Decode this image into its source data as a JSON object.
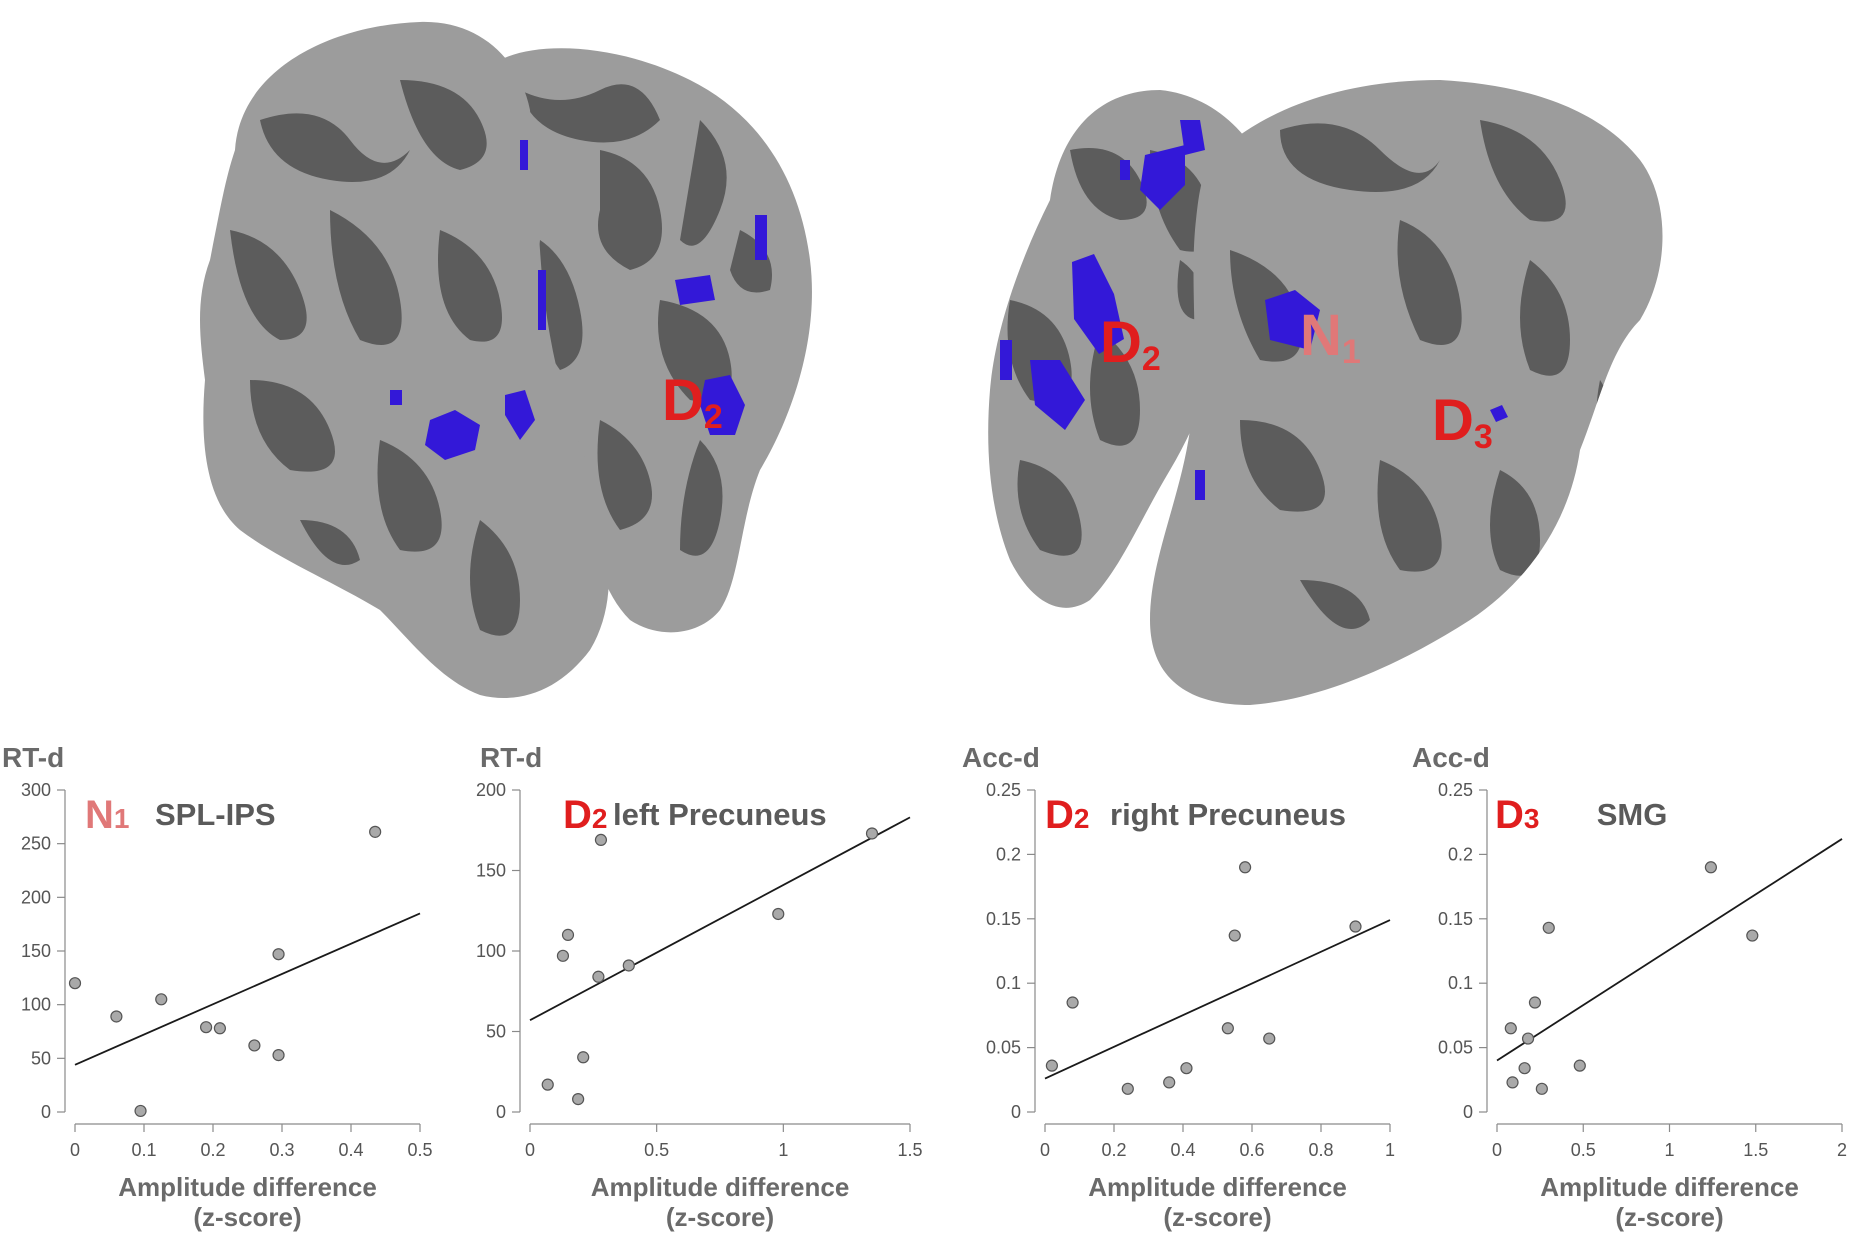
{
  "figure": {
    "brain_labels": {
      "left_hemisphere": [
        {
          "letter": "D",
          "sub": "2",
          "color": "#e01e1e"
        }
      ],
      "right_hemisphere": [
        {
          "letter": "D",
          "sub": "2",
          "color": "#e01e1e"
        },
        {
          "letter": "N",
          "sub": "1",
          "color": "#e07878"
        },
        {
          "letter": "D",
          "sub": "3",
          "color": "#e01e1e"
        }
      ]
    },
    "colors": {
      "cortex_light": "#9c9c9c",
      "cortex_dark": "#5c5c5c",
      "activation": "#3318d8",
      "regression_line": "#1a1a1a",
      "point_fill": "#a9a9a9"
    }
  },
  "chart_data": [
    {
      "type": "scatter",
      "ylabel": "RT-d",
      "label_letter": "N",
      "label_sub": "1",
      "label_color": "#e07878",
      "region": "SPL-IPS",
      "xlabel_line1": "Amplitude difference",
      "xlabel_line2": "(z-score)",
      "xlim": [
        0,
        0.5
      ],
      "ylim": [
        0,
        300
      ],
      "xticks": [
        0,
        0.1,
        0.2,
        0.3,
        0.4,
        0.5
      ],
      "xtick_labels": [
        "0",
        "0.1",
        "0.2",
        "0.3",
        "0.4",
        "0.5"
      ],
      "yticks": [
        0,
        50,
        100,
        150,
        200,
        250,
        300
      ],
      "ytick_labels": [
        "0",
        "50",
        "100",
        "150",
        "200",
        "250",
        "300"
      ],
      "points": [
        [
          0.0,
          120
        ],
        [
          0.06,
          89
        ],
        [
          0.095,
          1
        ],
        [
          0.125,
          105
        ],
        [
          0.19,
          79
        ],
        [
          0.21,
          78
        ],
        [
          0.26,
          62
        ],
        [
          0.295,
          147
        ],
        [
          0.295,
          53
        ],
        [
          0.435,
          261
        ]
      ],
      "fit_line": [
        [
          0,
          44
        ],
        [
          0.5,
          185
        ]
      ]
    },
    {
      "type": "scatter",
      "ylabel": "RT-d",
      "label_letter": "D",
      "label_sub": "2",
      "label_color": "#e01e1e",
      "region": "left Precuneus",
      "xlabel_line1": "Amplitude difference",
      "xlabel_line2": "(z-score)",
      "xlim": [
        0,
        1.5
      ],
      "ylim": [
        0,
        200
      ],
      "xticks": [
        0,
        0.5,
        1,
        1.5
      ],
      "xtick_labels": [
        "0",
        "0.5",
        "1",
        "1.5"
      ],
      "yticks": [
        0,
        50,
        100,
        150,
        200
      ],
      "ytick_labels": [
        "0",
        "50",
        "100",
        "150",
        "200"
      ],
      "points": [
        [
          0.07,
          17
        ],
        [
          0.13,
          97
        ],
        [
          0.15,
          110
        ],
        [
          0.19,
          8
        ],
        [
          0.21,
          34
        ],
        [
          0.27,
          84
        ],
        [
          0.28,
          169
        ],
        [
          0.39,
          91
        ],
        [
          0.98,
          123
        ],
        [
          1.35,
          173
        ]
      ],
      "fit_line": [
        [
          0,
          57
        ],
        [
          1.5,
          183
        ]
      ]
    },
    {
      "type": "scatter",
      "ylabel": "Acc-d",
      "label_letter": "D",
      "label_sub": "2",
      "label_color": "#e01e1e",
      "region": "right Precuneus",
      "xlabel_line1": "Amplitude difference",
      "xlabel_line2": "(z-score)",
      "xlim": [
        0,
        1
      ],
      "ylim": [
        0,
        0.25
      ],
      "xticks": [
        0,
        0.2,
        0.4,
        0.6,
        0.8,
        1
      ],
      "xtick_labels": [
        "0",
        "0.2",
        "0.4",
        "0.6",
        "0.8",
        "1"
      ],
      "yticks": [
        0,
        0.05,
        0.1,
        0.15,
        0.2,
        0.25
      ],
      "ytick_labels": [
        "0",
        "0.05",
        "0.1",
        "0.15",
        "0.2",
        "0.25"
      ],
      "points": [
        [
          0.02,
          0.036
        ],
        [
          0.08,
          0.085
        ],
        [
          0.24,
          0.018
        ],
        [
          0.36,
          0.023
        ],
        [
          0.41,
          0.034
        ],
        [
          0.53,
          0.065
        ],
        [
          0.55,
          0.137
        ],
        [
          0.58,
          0.19
        ],
        [
          0.65,
          0.057
        ],
        [
          0.9,
          0.144
        ]
      ],
      "fit_line": [
        [
          0,
          0.026
        ],
        [
          1,
          0.149
        ]
      ]
    },
    {
      "type": "scatter",
      "ylabel": "Acc-d",
      "label_letter": "D",
      "label_sub": "3",
      "label_color": "#e01e1e",
      "region": "SMG",
      "xlabel_line1": "Amplitude difference",
      "xlabel_line2": "(z-score)",
      "xlim": [
        0,
        2
      ],
      "ylim": [
        0,
        0.25
      ],
      "xticks": [
        0,
        0.5,
        1,
        1.5,
        2
      ],
      "xtick_labels": [
        "0",
        "0.5",
        "1",
        "1.5",
        "2"
      ],
      "yticks": [
        0,
        0.05,
        0.1,
        0.15,
        0.2,
        0.25
      ],
      "ytick_labels": [
        "0",
        "0.05",
        "0.1",
        "0.15",
        "0.2",
        "0.25"
      ],
      "points": [
        [
          0.08,
          0.065
        ],
        [
          0.09,
          0.023
        ],
        [
          0.16,
          0.034
        ],
        [
          0.18,
          0.057
        ],
        [
          0.22,
          0.085
        ],
        [
          0.26,
          0.018
        ],
        [
          0.3,
          0.143
        ],
        [
          0.48,
          0.036
        ],
        [
          1.24,
          0.19
        ],
        [
          1.48,
          0.137
        ]
      ],
      "fit_line": [
        [
          0,
          0.04
        ],
        [
          2,
          0.212
        ]
      ]
    }
  ]
}
